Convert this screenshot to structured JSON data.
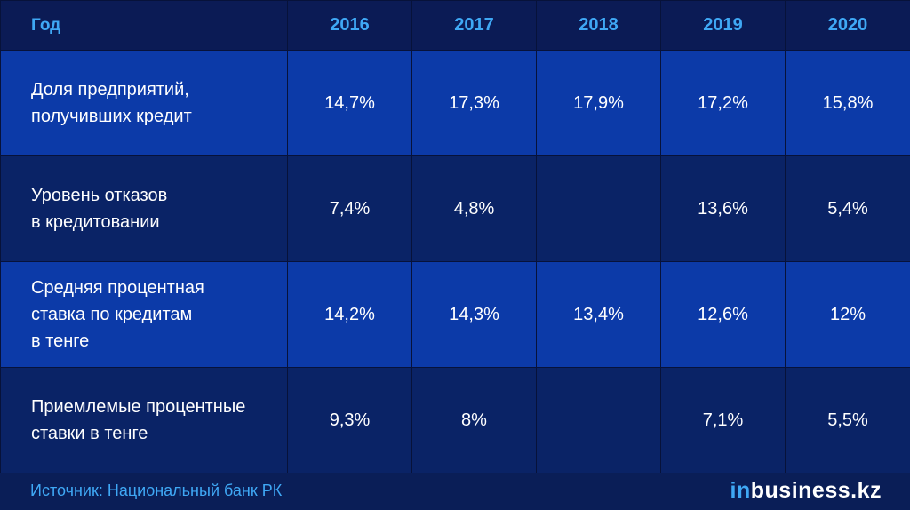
{
  "chart_data": {
    "type": "table",
    "header": [
      "Год",
      "2016",
      "2017",
      "2018",
      "2019",
      "2020"
    ],
    "rows": [
      {
        "label": "Доля предприятий,\nполучивших кредит",
        "values": [
          "14,7%",
          "17,3%",
          "17,9%",
          "17,2%",
          "15,8%"
        ]
      },
      {
        "label": "Уровень отказов\nв кредитовании",
        "values": [
          "7,4%",
          "4,8%",
          "",
          "13,6%",
          "5,4%"
        ]
      },
      {
        "label": "Средняя процентная\nставка по кредитам\nв тенге",
        "values": [
          "14,2%",
          "14,3%",
          "13,4%",
          "12,6%",
          "12%"
        ]
      },
      {
        "label": "Приемлемые процентные\nставки в тенге",
        "values": [
          "9,3%",
          "8%",
          "",
          "7,1%",
          "5,5%"
        ]
      }
    ]
  },
  "footer": {
    "source": "Источник: Национальный банк РК",
    "brand_prefix": "in",
    "brand_rest": "business.kz"
  },
  "colors": {
    "header_text": "#3fa8f5",
    "row_light": "#0c3aa8",
    "row_dark": "#0a2366",
    "background": "#0b1d57"
  }
}
